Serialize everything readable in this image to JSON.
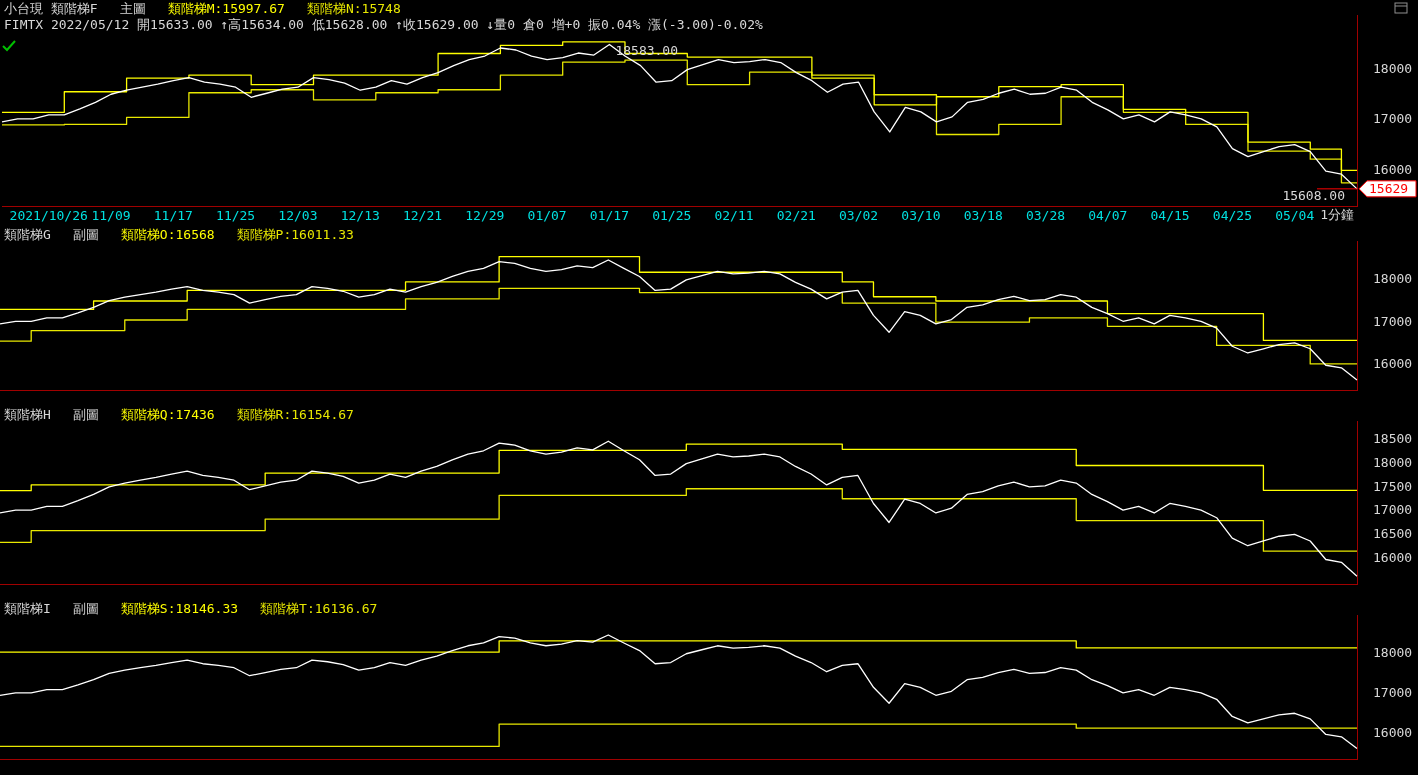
{
  "chart_data": [
    {
      "type": "line",
      "title": "小台現 類階梯F",
      "subtitle": "主圖",
      "legend": "top",
      "tick_labels": true,
      "categories": [
        null,
        null,
        null,
        "2021/10/26",
        null,
        null,
        null,
        "11/09",
        null,
        null,
        null,
        "11/17",
        null,
        null,
        null,
        "11/25",
        null,
        null,
        null,
        "12/03",
        null,
        null,
        null,
        "12/13",
        null,
        null,
        null,
        "12/21",
        null,
        null,
        null,
        "12/29",
        null,
        null,
        null,
        "01/07",
        null,
        null,
        null,
        "01/17",
        null,
        null,
        null,
        "01/25",
        null,
        null,
        null,
        "02/11",
        null,
        null,
        null,
        "02/21",
        null,
        null,
        null,
        "03/02",
        null,
        null,
        null,
        "03/10",
        null,
        null,
        null,
        "03/18",
        null,
        null,
        null,
        "03/28",
        null,
        null,
        null,
        "04/07",
        null,
        null,
        null,
        "04/15",
        null,
        null,
        null,
        "04/25",
        null,
        null,
        null,
        "05/04",
        null,
        null,
        null,
        null
      ],
      "ylim": [
        15280,
        19070
      ],
      "yticks": [
        16000,
        17000,
        18000
      ],
      "series": [
        {
          "color": "#ffffff",
          "values": [
            16960,
            17020,
            17020,
            17100,
            17100,
            17220,
            17350,
            17510,
            17590,
            17650,
            17710,
            17780,
            17840,
            17750,
            17710,
            17650,
            17450,
            17530,
            17610,
            17650,
            17840,
            17800,
            17730,
            17590,
            17650,
            17780,
            17710,
            17840,
            17940,
            18080,
            18200,
            18270,
            18430,
            18390,
            18270,
            18200,
            18240,
            18330,
            18290,
            18500,
            18270,
            18080,
            17750,
            17780,
            18000,
            18100,
            18200,
            18140,
            18160,
            18200,
            18140,
            17940,
            17780,
            17550,
            17710,
            17750,
            17160,
            16760,
            17250,
            17160,
            16960,
            17060,
            17350,
            17410,
            17530,
            17610,
            17510,
            17530,
            17650,
            17590,
            17350,
            17200,
            17020,
            17100,
            16960,
            17160,
            17100,
            17020,
            16860,
            16430,
            16270,
            16370,
            16470,
            16510,
            16370,
            15980,
            15920,
            15629
          ]
        },
        {
          "name": "類階梯M:15997.67",
          "type": "step",
          "color": "#ffff00",
          "values": [
            17150,
            17150,
            17150,
            17150,
            17560,
            17560,
            17560,
            17560,
            17830,
            17830,
            17830,
            17830,
            17890,
            17890,
            17890,
            17890,
            17700,
            17700,
            17700,
            17700,
            17890,
            17890,
            17890,
            17890,
            17890,
            17890,
            17890,
            17890,
            18320,
            18320,
            18320,
            18320,
            18480,
            18480,
            18480,
            18480,
            18550,
            18550,
            18550,
            18550,
            18320,
            18320,
            18320,
            18320,
            18250,
            18250,
            18250,
            18250,
            18250,
            18250,
            18250,
            18250,
            17830,
            17830,
            17830,
            17830,
            17300,
            17300,
            17300,
            17300,
            17460,
            17460,
            17460,
            17460,
            17660,
            17660,
            17660,
            17660,
            17700,
            17700,
            17700,
            17700,
            17210,
            17210,
            17210,
            17210,
            17150,
            17150,
            17150,
            17150,
            16560,
            16560,
            16560,
            16560,
            16420,
            16420,
            15997.67,
            15997.67
          ]
        },
        {
          "name": "類階梯N:15748",
          "type": "step",
          "color": "#e8e800",
          "values": [
            16900,
            16900,
            16900,
            16900,
            16910,
            16910,
            16910,
            16910,
            17050,
            17050,
            17050,
            17050,
            17540,
            17540,
            17540,
            17540,
            17600,
            17600,
            17600,
            17600,
            17400,
            17400,
            17400,
            17400,
            17540,
            17540,
            17540,
            17540,
            17600,
            17600,
            17600,
            17600,
            17890,
            17890,
            17890,
            17890,
            18150,
            18150,
            18150,
            18150,
            18190,
            18190,
            18190,
            18190,
            17700,
            17700,
            17700,
            17700,
            17950,
            17950,
            17950,
            17950,
            17890,
            17890,
            17890,
            17890,
            17500,
            17500,
            17500,
            17500,
            16710,
            16710,
            16710,
            16710,
            16910,
            16910,
            16910,
            16910,
            17460,
            17460,
            17460,
            17460,
            17150,
            17150,
            17150,
            17150,
            16910,
            16910,
            16910,
            16910,
            16380,
            16380,
            16380,
            16380,
            16220,
            16220,
            15748,
            15748
          ]
        }
      ],
      "xlabel": "1分鐘",
      "annotations": [
        "FIMTX 2022/05/12 開15633.00 ↑高15634.00 低15628.00 ↑收15629.00 ↓量0 倉0 增+0 振0.04% 漲(-3.00)-0.02%",
        {
          "text": "18583.00",
          "x": "01/17",
          "y": 18583
        },
        "15608.00"
      ],
      "ref_lines": [
        {
          "axis": "y",
          "value": 15629,
          "label": "15629",
          "color": "#ff0000"
        }
      ]
    },
    {
      "type": "line",
      "title": "類階梯G",
      "subtitle": "副圖",
      "legend": "top left",
      "tick_labels": "y",
      "categories": [
        null,
        null,
        null,
        null,
        null,
        null,
        null,
        null,
        null,
        null,
        null,
        null,
        null,
        null,
        null,
        null,
        null,
        null,
        null,
        null,
        null,
        null,
        null,
        null,
        null,
        null,
        null,
        null,
        null,
        null,
        null,
        null,
        null,
        null,
        null,
        null,
        null,
        null,
        null,
        null,
        null,
        null,
        null,
        null,
        null,
        null,
        null,
        null,
        null,
        null,
        null,
        null,
        null,
        null,
        null,
        null,
        null,
        null,
        null,
        null,
        null,
        null,
        null,
        null,
        null,
        null,
        null,
        null,
        null,
        null,
        null,
        null,
        null,
        null,
        null,
        null,
        null,
        null,
        null,
        null,
        null,
        null,
        null,
        null,
        null,
        null,
        null,
        null
      ],
      "ylim": [
        15390,
        18900
      ],
      "yticks": [
        16000,
        17000,
        18000
      ],
      "series": [
        {
          "color": "#ffffff",
          "values": [
            16960,
            17020,
            17020,
            17100,
            17100,
            17220,
            17350,
            17510,
            17590,
            17650,
            17710,
            17780,
            17840,
            17750,
            17710,
            17650,
            17450,
            17530,
            17610,
            17650,
            17840,
            17800,
            17730,
            17590,
            17650,
            17780,
            17710,
            17840,
            17940,
            18080,
            18200,
            18270,
            18430,
            18390,
            18270,
            18200,
            18240,
            18330,
            18290,
            18470,
            18270,
            18080,
            17750,
            17780,
            18000,
            18100,
            18200,
            18140,
            18160,
            18200,
            18140,
            17940,
            17780,
            17550,
            17710,
            17750,
            17160,
            16760,
            17250,
            17160,
            16960,
            17060,
            17350,
            17410,
            17530,
            17610,
            17510,
            17530,
            17650,
            17590,
            17350,
            17200,
            17020,
            17100,
            16960,
            17160,
            17100,
            17020,
            16860,
            16430,
            16270,
            16370,
            16470,
            16510,
            16370,
            15980,
            15920,
            15629
          ]
        },
        {
          "name": "類階梯O:16568",
          "type": "step",
          "color": "#ffff00",
          "values": [
            17300,
            17300,
            17300,
            17300,
            17300,
            17300,
            17500,
            17500,
            17500,
            17500,
            17500,
            17500,
            17750,
            17750,
            17750,
            17750,
            17750,
            17750,
            17750,
            17750,
            17750,
            17750,
            17750,
            17750,
            17750,
            17750,
            17950,
            17950,
            17950,
            17950,
            17950,
            17950,
            18550,
            18550,
            18550,
            18550,
            18550,
            18550,
            18550,
            18550,
            18550,
            18180,
            18180,
            18180,
            18180,
            18180,
            18180,
            18180,
            18180,
            18180,
            18180,
            18180,
            18180,
            18180,
            17950,
            17950,
            17600,
            17600,
            17600,
            17600,
            17500,
            17500,
            17500,
            17500,
            17500,
            17500,
            17500,
            17500,
            17500,
            17500,
            17500,
            17200,
            17200,
            17200,
            17200,
            17200,
            17200,
            17200,
            17200,
            17200,
            17200,
            16568,
            16568,
            16568,
            16568,
            16568,
            16568,
            16568
          ]
        },
        {
          "name": "類階梯P:16011.33",
          "type": "step",
          "color": "#e8e800",
          "values": [
            16550,
            16550,
            16800,
            16800,
            16800,
            16800,
            16800,
            16800,
            17050,
            17050,
            17050,
            17050,
            17300,
            17300,
            17300,
            17300,
            17300,
            17300,
            17300,
            17300,
            17300,
            17300,
            17300,
            17300,
            17300,
            17300,
            17550,
            17550,
            17550,
            17550,
            17550,
            17550,
            17800,
            17800,
            17800,
            17800,
            17800,
            17800,
            17800,
            17800,
            17800,
            17700,
            17700,
            17700,
            17700,
            17700,
            17700,
            17700,
            17700,
            17700,
            17700,
            17700,
            17700,
            17700,
            17450,
            17450,
            17450,
            17450,
            17450,
            17450,
            17000,
            17000,
            17000,
            17000,
            17000,
            17000,
            17100,
            17100,
            17100,
            17100,
            17100,
            16900,
            16900,
            16900,
            16900,
            16900,
            16900,
            16900,
            16450,
            16450,
            16450,
            16450,
            16450,
            16450,
            16011.33,
            16011.33,
            16011.33,
            16011.33
          ]
        }
      ]
    },
    {
      "type": "line",
      "title": "類階梯H",
      "subtitle": "副圖",
      "legend": "top left",
      "tick_labels": "y",
      "categories": [
        null,
        null,
        null,
        null,
        null,
        null,
        null,
        null,
        null,
        null,
        null,
        null,
        null,
        null,
        null,
        null,
        null,
        null,
        null,
        null,
        null,
        null,
        null,
        null,
        null,
        null,
        null,
        null,
        null,
        null,
        null,
        null,
        null,
        null,
        null,
        null,
        null,
        null,
        null,
        null,
        null,
        null,
        null,
        null,
        null,
        null,
        null,
        null,
        null,
        null,
        null,
        null,
        null,
        null,
        null,
        null,
        null,
        null,
        null,
        null,
        null,
        null,
        null,
        null,
        null,
        null,
        null,
        null,
        null,
        null,
        null,
        null,
        null,
        null,
        null,
        null,
        null,
        null,
        null,
        null,
        null,
        null,
        null,
        null,
        null,
        null,
        null,
        null
      ],
      "ylim": [
        15460,
        18880
      ],
      "yticks": [
        16000,
        16500,
        17000,
        17500,
        18000,
        18500
      ],
      "series": [
        {
          "color": "#ffffff",
          "values": [
            16960,
            17020,
            17020,
            17100,
            17100,
            17220,
            17350,
            17510,
            17590,
            17650,
            17710,
            17780,
            17840,
            17750,
            17710,
            17650,
            17450,
            17530,
            17610,
            17650,
            17840,
            17800,
            17730,
            17590,
            17650,
            17780,
            17710,
            17840,
            17940,
            18080,
            18200,
            18270,
            18430,
            18390,
            18270,
            18200,
            18240,
            18330,
            18290,
            18470,
            18270,
            18080,
            17750,
            17780,
            18000,
            18100,
            18200,
            18140,
            18160,
            18200,
            18140,
            17940,
            17780,
            17550,
            17710,
            17750,
            17160,
            16760,
            17250,
            17160,
            16960,
            17060,
            17350,
            17410,
            17530,
            17610,
            17510,
            17530,
            17650,
            17590,
            17350,
            17200,
            17020,
            17100,
            16960,
            17160,
            17100,
            17020,
            16860,
            16430,
            16270,
            16370,
            16470,
            16510,
            16370,
            15980,
            15920,
            15629
          ]
        },
        {
          "name": "類階梯Q:17436",
          "type": "step",
          "color": "#ffff00",
          "values": [
            17430,
            17430,
            17550,
            17550,
            17550,
            17550,
            17550,
            17550,
            17550,
            17550,
            17550,
            17550,
            17550,
            17550,
            17550,
            17550,
            17550,
            17800,
            17800,
            17800,
            17800,
            17800,
            17800,
            17800,
            17800,
            17800,
            17800,
            17800,
            17800,
            17800,
            17800,
            17800,
            18280,
            18280,
            18280,
            18280,
            18280,
            18280,
            18280,
            18280,
            18280,
            18280,
            18280,
            18280,
            18410,
            18410,
            18410,
            18410,
            18410,
            18410,
            18410,
            18410,
            18410,
            18410,
            18300,
            18300,
            18300,
            18300,
            18300,
            18300,
            18300,
            18300,
            18300,
            18300,
            18300,
            18300,
            18300,
            18300,
            18300,
            17960,
            17960,
            17960,
            17960,
            17960,
            17960,
            17960,
            17960,
            17960,
            17960,
            17960,
            17960,
            17436,
            17436,
            17436,
            17436,
            17436,
            17436,
            17436
          ]
        },
        {
          "name": "類階梯R:16154.67",
          "type": "step",
          "color": "#e8e800",
          "values": [
            16340,
            16340,
            16590,
            16590,
            16590,
            16590,
            16590,
            16590,
            16590,
            16590,
            16590,
            16590,
            16590,
            16590,
            16590,
            16590,
            16590,
            16830,
            16830,
            16830,
            16830,
            16830,
            16830,
            16830,
            16830,
            16830,
            16830,
            16830,
            16830,
            16830,
            16830,
            16830,
            17330,
            17330,
            17330,
            17330,
            17330,
            17330,
            17330,
            17330,
            17330,
            17330,
            17330,
            17330,
            17470,
            17470,
            17470,
            17470,
            17470,
            17470,
            17470,
            17470,
            17470,
            17470,
            17260,
            17260,
            17260,
            17260,
            17260,
            17260,
            17260,
            17260,
            17260,
            17260,
            17260,
            17260,
            17260,
            17260,
            17260,
            16800,
            16800,
            16800,
            16800,
            16800,
            16800,
            16800,
            16800,
            16800,
            16800,
            16800,
            16800,
            16154.67,
            16154.67,
            16154.67,
            16154.67,
            16154.67,
            16154.67,
            16154.67
          ]
        }
      ]
    },
    {
      "type": "line",
      "title": "類階梯I",
      "subtitle": "副圖",
      "legend": "top left",
      "tick_labels": "y",
      "categories": [
        null,
        null,
        null,
        null,
        null,
        null,
        null,
        null,
        null,
        null,
        null,
        null,
        null,
        null,
        null,
        null,
        null,
        null,
        null,
        null,
        null,
        null,
        null,
        null,
        null,
        null,
        null,
        null,
        null,
        null,
        null,
        null,
        null,
        null,
        null,
        null,
        null,
        null,
        null,
        null,
        null,
        null,
        null,
        null,
        null,
        null,
        null,
        null,
        null,
        null,
        null,
        null,
        null,
        null,
        null,
        null,
        null,
        null,
        null,
        null,
        null,
        null,
        null,
        null,
        null,
        null,
        null,
        null,
        null,
        null,
        null,
        null,
        null,
        null,
        null,
        null,
        null,
        null,
        null,
        null,
        null,
        null,
        null,
        null,
        null,
        null,
        null,
        null
      ],
      "ylim": [
        15360,
        18950
      ],
      "yticks": [
        16000,
        17000,
        18000
      ],
      "series": [
        {
          "color": "#ffffff",
          "values": [
            16960,
            17020,
            17020,
            17100,
            17100,
            17220,
            17350,
            17510,
            17590,
            17650,
            17710,
            17780,
            17840,
            17750,
            17710,
            17650,
            17450,
            17530,
            17610,
            17650,
            17840,
            17800,
            17730,
            17590,
            17650,
            17780,
            17710,
            17840,
            17940,
            18080,
            18200,
            18270,
            18430,
            18390,
            18270,
            18200,
            18240,
            18330,
            18290,
            18470,
            18270,
            18080,
            17750,
            17780,
            18000,
            18100,
            18200,
            18140,
            18160,
            18200,
            18140,
            17940,
            17780,
            17550,
            17710,
            17750,
            17160,
            16760,
            17250,
            17160,
            16960,
            17060,
            17350,
            17410,
            17530,
            17610,
            17510,
            17530,
            17650,
            17590,
            17350,
            17200,
            17020,
            17100,
            16960,
            17160,
            17100,
            17020,
            16860,
            16430,
            16270,
            16370,
            16470,
            16510,
            16370,
            15980,
            15920,
            15629
          ]
        },
        {
          "name": "類階梯S:18146.33",
          "type": "step",
          "color": "#ffff00",
          "values": [
            18040,
            18040,
            18040,
            18040,
            18040,
            18040,
            18040,
            18040,
            18040,
            18040,
            18040,
            18040,
            18040,
            18040,
            18040,
            18040,
            18040,
            18040,
            18040,
            18040,
            18040,
            18040,
            18040,
            18040,
            18040,
            18040,
            18040,
            18040,
            18040,
            18040,
            18040,
            18040,
            18320,
            18320,
            18320,
            18320,
            18320,
            18320,
            18320,
            18320,
            18320,
            18320,
            18320,
            18320,
            18320,
            18320,
            18320,
            18320,
            18320,
            18320,
            18320,
            18320,
            18320,
            18320,
            18320,
            18320,
            18320,
            18320,
            18320,
            18320,
            18320,
            18320,
            18320,
            18320,
            18320,
            18320,
            18320,
            18320,
            18320,
            18146.33,
            18146.33,
            18146.33,
            18146.33,
            18146.33,
            18146.33,
            18146.33,
            18146.33,
            18146.33,
            18146.33,
            18146.33,
            18146.33,
            18146.33,
            18146.33,
            18146.33,
            18146.33,
            18146.33,
            18146.33,
            18146.33
          ]
        },
        {
          "name": "類階梯T:16136.67",
          "type": "step",
          "color": "#e8e800",
          "values": [
            15680,
            15680,
            15680,
            15680,
            15680,
            15680,
            15680,
            15680,
            15680,
            15680,
            15680,
            15680,
            15680,
            15680,
            15680,
            15680,
            15680,
            15680,
            15680,
            15680,
            15680,
            15680,
            15680,
            15680,
            15680,
            15680,
            15680,
            15680,
            15680,
            15680,
            15680,
            15680,
            16240,
            16240,
            16240,
            16240,
            16240,
            16240,
            16240,
            16240,
            16240,
            16240,
            16240,
            16240,
            16240,
            16240,
            16240,
            16240,
            16240,
            16240,
            16240,
            16240,
            16240,
            16240,
            16240,
            16240,
            16240,
            16240,
            16240,
            16240,
            16240,
            16240,
            16240,
            16240,
            16240,
            16240,
            16240,
            16240,
            16240,
            16136.67,
            16136.67,
            16136.67,
            16136.67,
            16136.67,
            16136.67,
            16136.67,
            16136.67,
            16136.67,
            16136.67,
            16136.67,
            16136.67,
            16136.67,
            16136.67,
            16136.67,
            16136.67,
            16136.67,
            16136.67,
            16136.67
          ]
        }
      ]
    }
  ]
}
